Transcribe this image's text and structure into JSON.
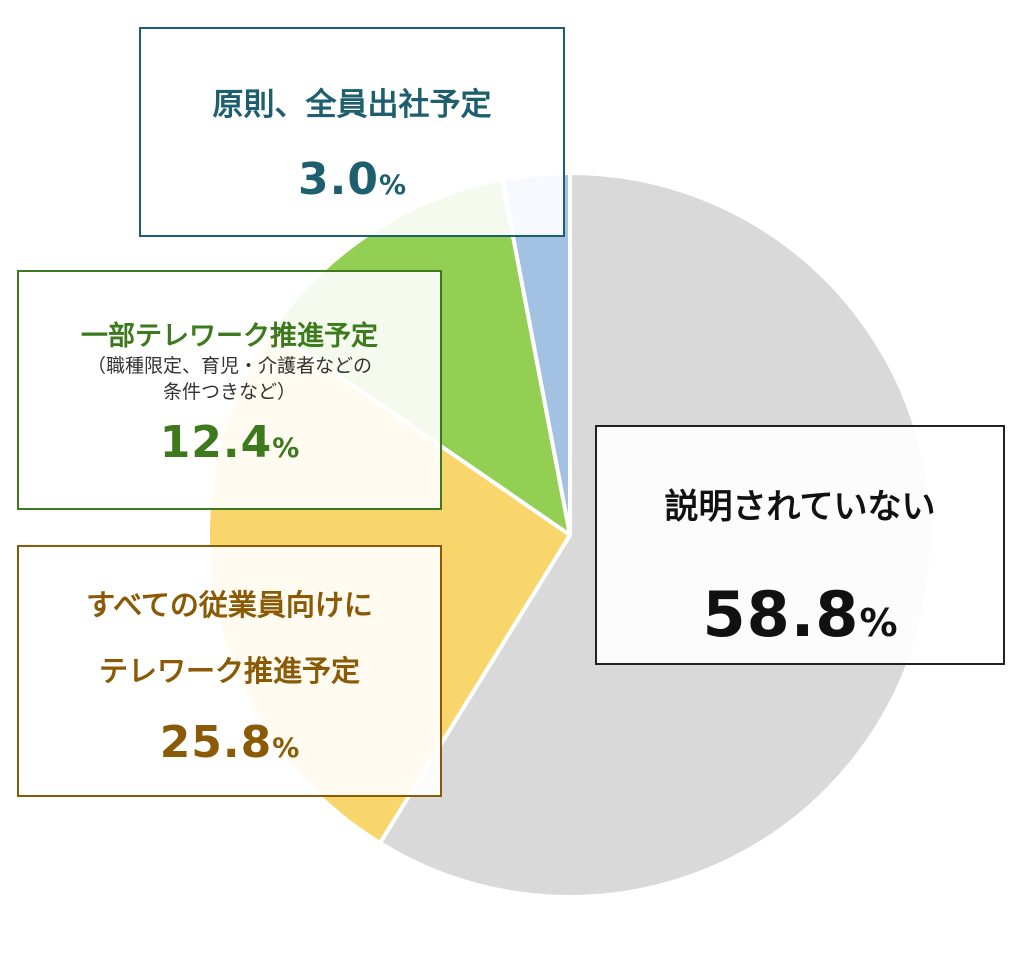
{
  "chart_data": {
    "type": "pie",
    "slices": [
      {
        "name": "説明されていない",
        "value": 58.8,
        "color": "#d9d9d9"
      },
      {
        "name": "すべての従業員向けに テレワーク推進予定",
        "value": 25.8,
        "color": "#f9d66b"
      },
      {
        "name": "一部テレワーク推進予定 （職種限定、育児・介護者などの 条件つきなど）",
        "value": 12.4,
        "color": "#92cf52"
      },
      {
        "name": "原則、全員出社予定",
        "value": 3.0,
        "color": "#a3c2e3"
      }
    ],
    "start_angle_deg": 0,
    "direction": "clockwise"
  },
  "labels": {
    "none": {
      "title": "説明されていない",
      "pct": "58.8",
      "sign": "%"
    },
    "office": {
      "title": "原則、全員出社予定",
      "pct": "3.0",
      "sign": "%"
    },
    "partial": {
      "title": "一部テレワーク推進予定",
      "sub1": "（職種限定、育児・介護者などの",
      "sub2": "条件つきなど）",
      "pct": "12.4",
      "sign": "%"
    },
    "all": {
      "title1": "すべての従業員向けに",
      "title2": "テレワーク推進予定",
      "pct": "25.8",
      "sign": "%"
    }
  }
}
